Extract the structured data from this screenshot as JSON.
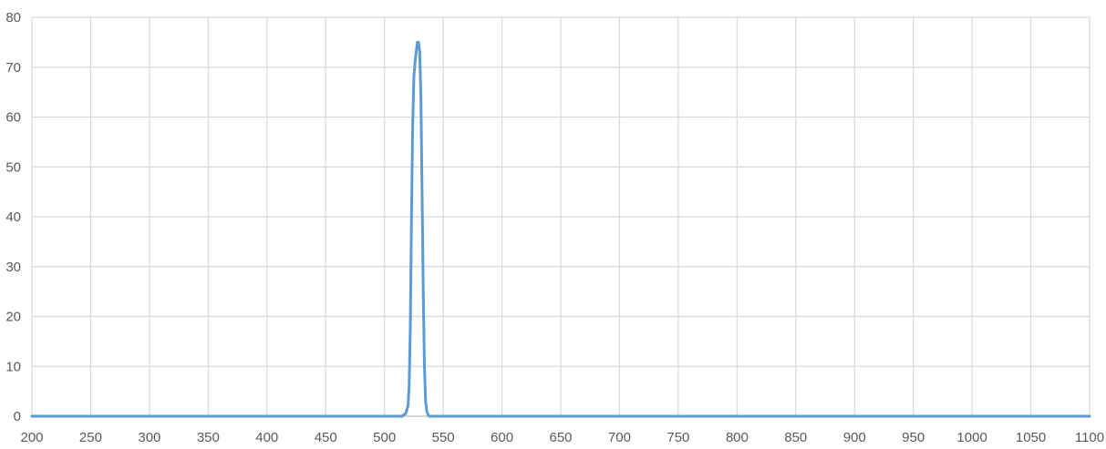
{
  "chart_data": {
    "type": "line",
    "title": "",
    "xlabel": "",
    "ylabel": "",
    "xlim": [
      200,
      1100
    ],
    "ylim": [
      0,
      80
    ],
    "x_ticks": [
      200,
      250,
      300,
      350,
      400,
      450,
      500,
      550,
      600,
      650,
      700,
      750,
      800,
      850,
      900,
      950,
      1000,
      1050,
      1100
    ],
    "y_ticks": [
      0,
      10,
      20,
      30,
      40,
      50,
      60,
      70,
      80
    ],
    "grid": true,
    "legend": "none",
    "series": [
      {
        "color": "#5b9bd5",
        "x": [
          200,
          400,
          500,
          515,
          518,
          520,
          521,
          522,
          523,
          524,
          525,
          526,
          527,
          528,
          529,
          530,
          531,
          532,
          533,
          534,
          535,
          536,
          537,
          538,
          539,
          540,
          542,
          545,
          560,
          700,
          900,
          1100
        ],
        "y": [
          0,
          0,
          0,
          0,
          0.5,
          2,
          6,
          18,
          40,
          58,
          68,
          71,
          73,
          75,
          75,
          73,
          64,
          45,
          25,
          10,
          3,
          1,
          0.3,
          0,
          0,
          0,
          0,
          0,
          0,
          0,
          0,
          0
        ]
      }
    ]
  }
}
